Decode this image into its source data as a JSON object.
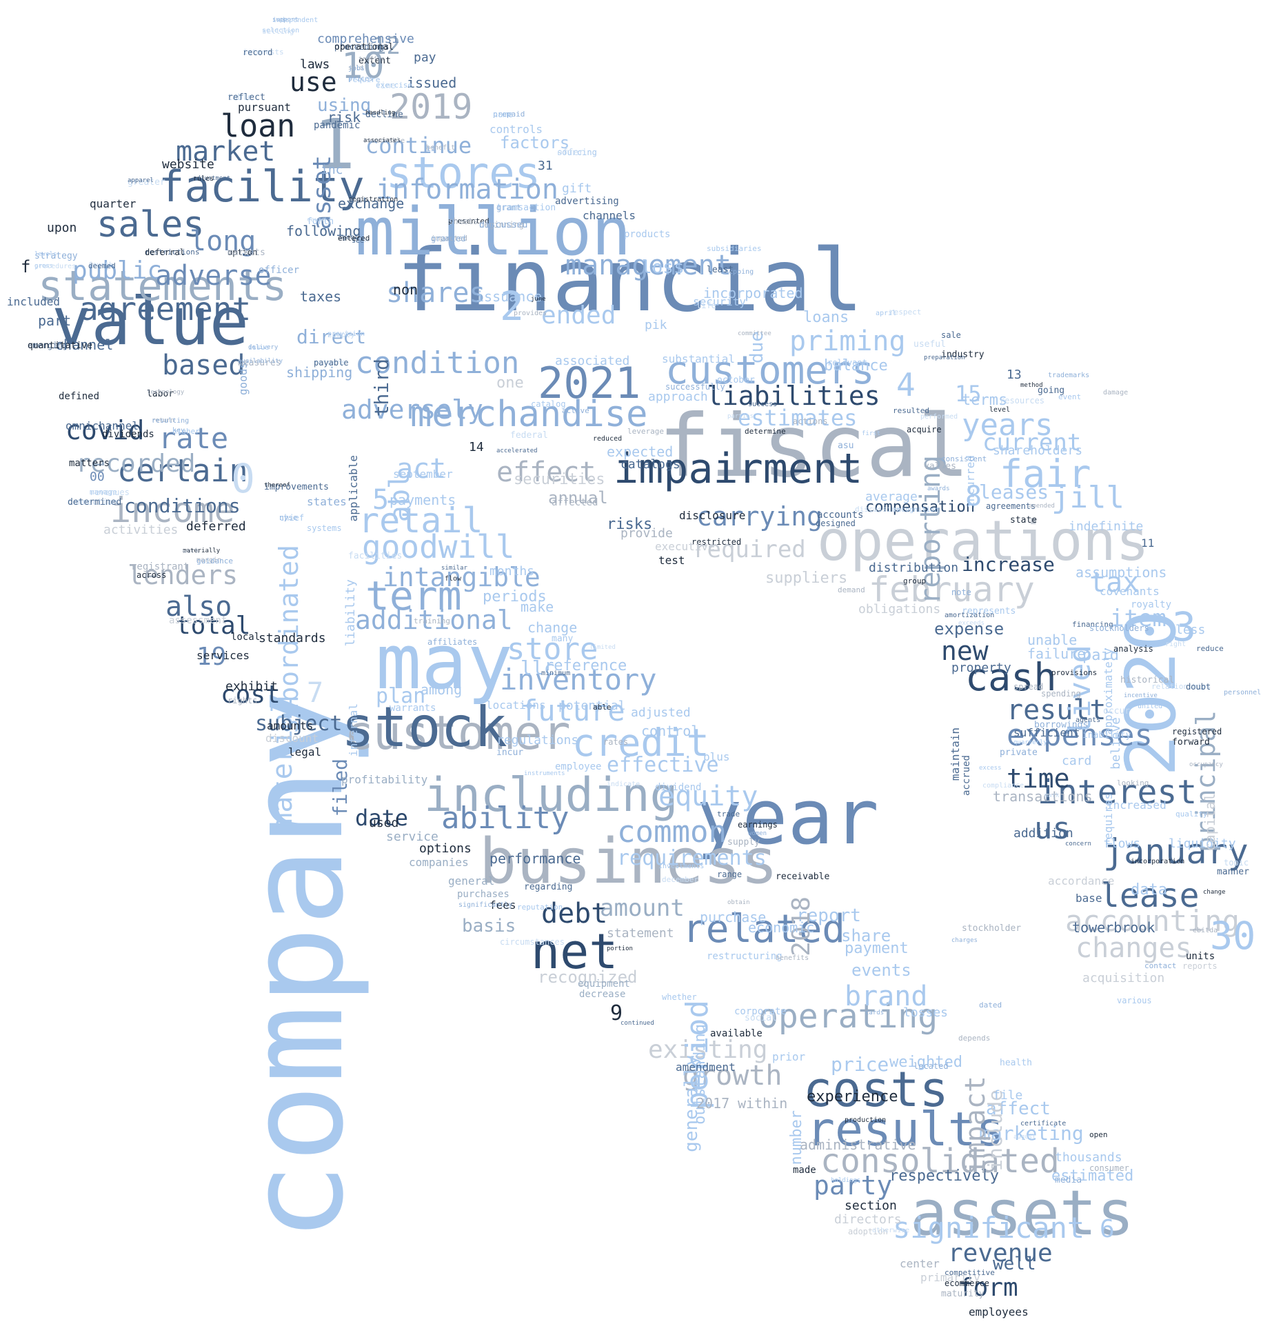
{
  "title": "",
  "palette": {
    "dark_navy": "#1f2c3d",
    "navy": "#2e4a6e",
    "steel_blue": "#4b6a91",
    "mid_blue": "#6b8bb6",
    "light_blue": "#8fb0d9",
    "sky_blue": "#a9c9ee",
    "pale_blue": "#c8dcf2",
    "gray": "#aab4c2",
    "light_gray": "#c9cfd7"
  },
  "words": {
    "company": "company",
    "financial": "financial",
    "fiscal": "fiscal",
    "million": "million",
    "year": "year",
    "may": "may",
    "business": "business",
    "operations": "operations",
    "value": "value",
    "y2020": "2020",
    "n1": "1",
    "customer": "customer",
    "stock": "stock",
    "including": "including",
    "assets": "assets",
    "costs": "costs",
    "results": "results",
    "statements": "statements",
    "facility": "facility",
    "impairment": "impairment",
    "y2021": "2021",
    "stores": "stores",
    "customers": "customers",
    "merchandise": "merchandise",
    "net": "net",
    "credit": "credit",
    "related": "related",
    "consolidated": "consolidated",
    "significant": "significant",
    "operating": "operating",
    "interest": "interest",
    "january": "january",
    "february": "february",
    "fair": "fair",
    "cash": "cash",
    "lease": "lease",
    "accounting": "accounting",
    "changes": "changes",
    "expenses": "expenses",
    "sales": "sales",
    "agreement": "agreement",
    "income": "income",
    "certain": "certain",
    "market": "market",
    "loan": "loan",
    "condition": "condition",
    "management": "management",
    "information": "information",
    "y2019": "2019",
    "n10": "10",
    "use": "use",
    "term": "term",
    "retail": "retail",
    "goodwill": "goodwill",
    "intangible": "intangible",
    "additional": "additional",
    "store": "store",
    "inventory": "inventory",
    "future": "future",
    "common": "common",
    "equity": "equity",
    "ability": "ability",
    "requirements": "requirements",
    "effective": "effective",
    "debt": "debt",
    "amount": "amount",
    "brand": "brand",
    "existing": "existing",
    "growth": "growth",
    "revenue": "revenue",
    "form": "form",
    "well": "well",
    "party": "party",
    "respectively": "respectively",
    "marketing": "marketing",
    "affect": "affect",
    "experience": "experience",
    "administrative": "administrative",
    "estimated": "estimated",
    "thousands": "thousands",
    "section": "section",
    "directors": "directors",
    "liabilities": "liabilities",
    "estimates": "estimates",
    "carrying": "carrying",
    "required": "required",
    "priming": "priming",
    "years": "years",
    "current": "current",
    "reporting": "reporting",
    "jill": "jill",
    "leases": "leases",
    "compensation": "compensation",
    "increase": "increase",
    "tax": "tax",
    "item": "item",
    "new": "new",
    "result": "result",
    "time": "time",
    "us": "us",
    "principal": "principal",
    "lived": "lived",
    "material": "material",
    "subordinated": "subordinated",
    "asset": "asset",
    "also": "also",
    "total": "total",
    "lenders": "lenders",
    "rate": "rate",
    "covid": "covid",
    "recorded": "recorded",
    "conditions": "conditions",
    "based": "based",
    "public": "public",
    "adverse": "adverse",
    "long": "long",
    "adversely": "adversely",
    "act": "act",
    "shares": "shares",
    "ended": "ended",
    "effect": "effect",
    "continue": "continue",
    "cost": "cost",
    "subject": "subject",
    "date": "date",
    "period": "period",
    "impact": "impact",
    "include": "include",
    "report": "report",
    "share": "share",
    "payment": "payment",
    "events": "events",
    "price": "price",
    "weighted": "weighted",
    "y2018": "2018",
    "n0": "0",
    "n2": "2",
    "n3": "3",
    "n4": "4",
    "n5": "5",
    "n6": "6",
    "n7": "7",
    "n8": "8",
    "n9": "9",
    "n12": "12",
    "n15": "15",
    "n19": "19",
    "n30": "30",
    "loss": "loss",
    "incorporated": "incorporated",
    "loans": "loans",
    "balance": "balance",
    "terms": "terms",
    "expense": "expense",
    "assumptions": "assumptions",
    "indefinite": "indefinite",
    "covenants": "covenants",
    "liquidity": "liquidity",
    "flows": "flows",
    "data": "data",
    "towerbrook": "towerbrook",
    "acquisition": "acquisition",
    "securities": "securities",
    "payments": "payments",
    "annual": "annual",
    "expected": "expected",
    "risks": "risks",
    "provide": "provide",
    "test": "test",
    "catalogs": "catalogs",
    "suppliers": "suppliers",
    "distribution": "distribution",
    "obligations": "obligations",
    "average": "average",
    "statement": "statement",
    "recognized": "recognized",
    "basis": "basis",
    "purchase": "purchase",
    "economic": "economic",
    "adjusted": "adjusted",
    "control": "control",
    "potential": "potential",
    "locations": "locations",
    "regulations": "regulations",
    "plan": "plan",
    "reference": "reference",
    "among": "among",
    "llc": "llc",
    "change": "change",
    "periods": "periods",
    "make": "make",
    "months": "months",
    "september": "september",
    "direct": "direct",
    "shipping": "shipping",
    "taxes": "taxes",
    "non": "non",
    "issuance": "issuance",
    "one": "one",
    "third": "third",
    "abl": "abl",
    "factors": "factors",
    "controls": "controls",
    "using": "using",
    "risk": "risk",
    "issued": "issued",
    "pay": "pay",
    "comprehensive": "comprehensive",
    "laws": "laws",
    "pandemic": "pandemic",
    "exchange": "exchange",
    "following": "following",
    "website": "website",
    "pursuant": "pursuant",
    "quarter": "quarter",
    "upon": "upon",
    "channel": "channel",
    "part": "part",
    "included": "included",
    "f": "f",
    "omnichannel": "omnichannel",
    "defined": "defined",
    "dividends": "dividends",
    "matters": "matters",
    "deferred": "deferred",
    "activities": "activities",
    "registrant": "registrant",
    "across": "across",
    "standards": "standards",
    "services": "services",
    "exhibit": "exhibit",
    "amounts": "amounts",
    "discount": "discount",
    "legal": "legal",
    "filed": "filed",
    "profitability": "profitability",
    "used": "used",
    "service": "service",
    "options": "options",
    "companies": "companies",
    "general": "general",
    "purchases": "purchases",
    "fees": "fees",
    "performance": "performance",
    "equipment": "equipment",
    "decrease": "decrease",
    "dividend": "dividend",
    "plus": "plus",
    "employee": "employee",
    "generally": "generally",
    "outstanding": "outstanding",
    "restructuring": "restructuring",
    "corporate": "corporate",
    "losses": "losses",
    "amendment": "amendment",
    "within": "within",
    "y2017": "2017",
    "prior": "prior",
    "number": "number",
    "available": "available",
    "made": "made",
    "file": "file",
    "center": "center",
    "primarily": "primarily",
    "employees": "employees",
    "adoption": "adoption",
    "property": "property",
    "sufficient": "sufficient",
    "unable": "unable",
    "failure": "failure",
    "paid": "paid",
    "maintain": "maintain",
    "accrued": "accrued",
    "transactions": "transactions",
    "card": "card",
    "addition": "addition",
    "accordance": "accordance",
    "base": "base",
    "increased": "increased",
    "capital": "capital",
    "units": "units",
    "reports": "reports",
    "approximately": "approximately",
    "believe": "believe",
    "requires": "requires",
    "less": "less",
    "royalty": "royalty",
    "shareholders": "shareholders",
    "incurred": "incurred",
    "approach": "approach",
    "substantial": "substantial",
    "associated": "associated",
    "due": "due",
    "security": "security",
    "pik": "pik",
    "gift": "gift",
    "advertising": "advertising",
    "channels": "channels",
    "products": "products",
    "disclosure": "disclosure",
    "restricted": "restricted",
    "executive": "executive",
    "accounts": "accounts",
    "designed": "designed",
    "affected": "affected",
    "rights": "rights",
    "local": "local",
    "assessment": "assessment",
    "n14": "14",
    "n11": "11",
    "n13": "13",
    "n00": "00",
    "n31": "31",
    "inc": "inc",
    "states": "states",
    "officer": "officer",
    "applicable": "applicable",
    "liability": "liability",
    "goods": "goods",
    "internal": "internal",
    "warrants": "warrants",
    "ending": "ending",
    "extra_small": [
      "support",
      "selection",
      "interests",
      "proceedings",
      "extent",
      "sold",
      "prices",
      "exercise",
      "table",
      "decline",
      "associates",
      "benefit",
      "prepaid",
      "sourcing",
      "greater",
      "adjustment",
      "registration",
      "impacted",
      "grant",
      "forth",
      "libor",
      "agent",
      "presented",
      "beginning",
      "strategy",
      "gross",
      "fourth",
      "restrictions",
      "option",
      "measures",
      "delivery",
      "provision",
      "returns",
      "emerging",
      "labor",
      "return",
      "key",
      "manage",
      "connection",
      "improvements",
      "materially",
      "margin",
      "nyse",
      "systems",
      "facilities",
      "similar",
      "flow",
      "training",
      "affiliates",
      "many",
      "limited",
      "minimum",
      "able",
      "rates",
      "incur",
      "instruments",
      "indicate",
      "trade",
      "earnings",
      "supply",
      "women",
      "investments",
      "december",
      "range",
      "receivable",
      "obtain",
      "significantly",
      "reputation",
      "circumstances",
      "regarding",
      "portion",
      "benefits",
      "dated",
      "whether",
      "social",
      "continued",
      "production",
      "depends",
      "located",
      "health",
      "august",
      "certificate",
      "open",
      "consumer",
      "media",
      "holdings",
      "otherwise",
      "competitive",
      "ecommerce",
      "maturity",
      "cards",
      "april",
      "respect",
      "sale",
      "industry",
      "committee",
      "shopping",
      "subsidiaries",
      "life",
      "least",
      "june",
      "provides",
      "active",
      "catalog",
      "federal",
      "accelerated",
      "reduced",
      "leverage",
      "successfully",
      "october",
      "parties",
      "success",
      "determine",
      "actions",
      "asu",
      "first",
      "performed",
      "resulted",
      "acquire",
      "values",
      "awards",
      "recognition",
      "discussion",
      "agreements",
      "state",
      "amended",
      "trademarks",
      "event",
      "resources",
      "going",
      "method",
      "damage",
      "consistent",
      "relevant",
      "useful",
      "preparation",
      "level",
      "demand",
      "note",
      "represents",
      "exceeds",
      "amortization",
      "group",
      "spread",
      "private",
      "excess",
      "compliance",
      "financing",
      "analysis",
      "historical",
      "incentive",
      "united",
      "relationships",
      "doubt",
      "forward",
      "occupancy",
      "personnel",
      "quality",
      "topic",
      "manner",
      "change",
      "ebitda",
      "contact",
      "various",
      "occur",
      "concern",
      "incorporation",
      "looking",
      "stockholders",
      "inability",
      "mark",
      "agents",
      "provisions",
      "spending",
      "borrowings",
      "quarterly",
      "right",
      "reduce",
      "registered",
      "stockholder",
      "charges",
      "independent",
      "selling",
      "record",
      "operational",
      "traffic",
      "jobs",
      "require",
      "fine",
      "reflect",
      "handling",
      "reasonable",
      "ii",
      "name",
      "offer",
      "apparel",
      "rules",
      "end",
      "granted",
      "transaction",
      "cause",
      "see",
      "entered",
      "sheets",
      "discussed",
      "levels",
      "procedures",
      "deemed",
      "deferral",
      "markets",
      "availability",
      "issue",
      "comply",
      "payable",
      "quantitative",
      "technology",
      "resulting",
      "higher",
      "revenues",
      "determined",
      "thereof",
      "work",
      "guidance",
      "chief"
    ]
  }
}
